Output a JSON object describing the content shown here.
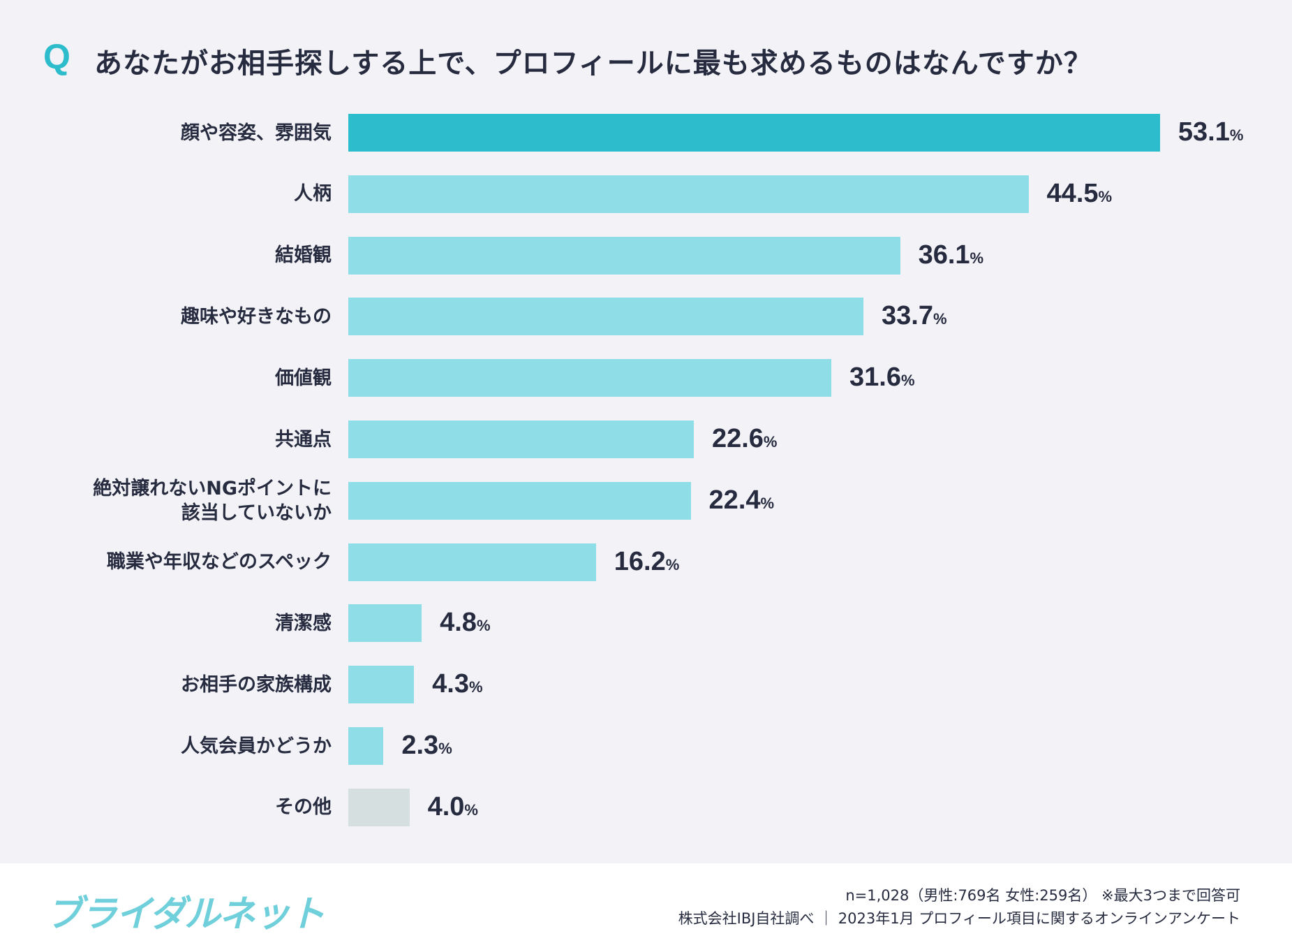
{
  "header": {
    "q_mark": "Q",
    "title": "あなたがお相手探しする上で、プロフィールに最も求めるものはなんですか？"
  },
  "chart_data": {
    "type": "bar",
    "orientation": "horizontal",
    "title": "あなたがお相手探しする上で、プロフィールに最も求めるものはなんですか？",
    "categories": [
      "顔や容姿、雰囲気",
      "人柄",
      "結婚観",
      "趣味や好きなもの",
      "価値観",
      "共通点",
      "絶対譲れないNGポイントに\n該当していないか",
      "職業や年収などのスペック",
      "清潔感",
      "お相手の家族構成",
      "人気会員かどうか",
      "その他"
    ],
    "values": [
      53.1,
      44.5,
      36.1,
      33.7,
      31.6,
      22.6,
      22.4,
      16.2,
      4.8,
      4.3,
      2.3,
      4.0
    ],
    "value_labels": [
      "53.1",
      "44.5",
      "36.1",
      "33.7",
      "31.6",
      "22.6",
      "22.4",
      "16.2",
      "4.8",
      "4.3",
      "2.3",
      "4.0"
    ],
    "unit": "%",
    "grid": false,
    "colors": {
      "highlight": "#2dbccc",
      "default": "#8fdde6",
      "other": "#d5dfe0"
    }
  },
  "footer": {
    "logo": "ブライダルネット",
    "note1": "n=1,028（男性:769名 女性:259名） ※最大3つまで回答可",
    "note2": "株式会社IBJ自社調べ ｜ 2023年1月 プロフィール項目に関するオンラインアンケート"
  }
}
